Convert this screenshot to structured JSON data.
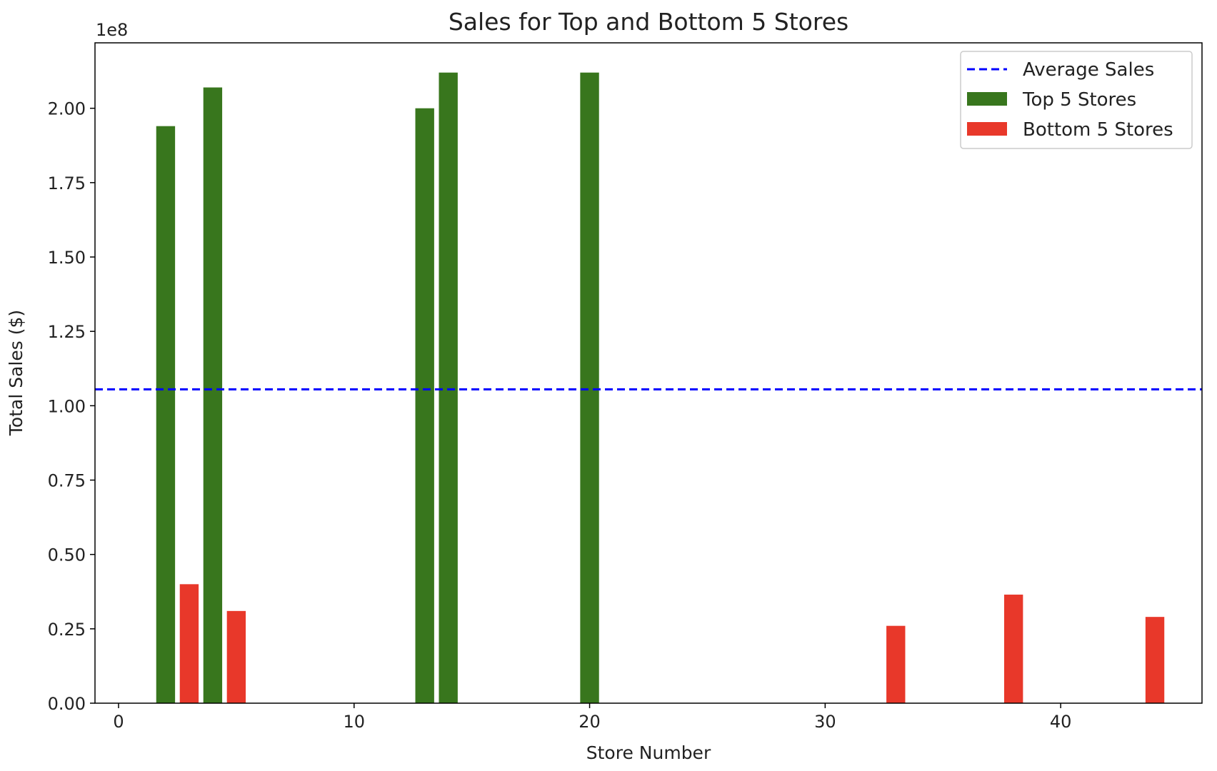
{
  "chart_data": {
    "type": "bar",
    "title": "Sales for Top and Bottom 5 Stores",
    "xlabel": "Store Number",
    "ylabel": "Total Sales ($)",
    "y_offset_label": "1e8",
    "xlim": [
      -1,
      46
    ],
    "ylim": [
      0,
      2.22
    ],
    "xticks": [
      0,
      10,
      20,
      30,
      40
    ],
    "yticks": [
      "0.00",
      "0.25",
      "0.50",
      "0.75",
      "1.00",
      "1.25",
      "1.50",
      "1.75",
      "2.00"
    ],
    "bar_width": 0.8,
    "average_sales": 1.055,
    "series": [
      {
        "name": "Top 5 Stores",
        "color": "#38761d",
        "x": [
          2,
          4,
          13,
          14,
          20
        ],
        "values": [
          1.94,
          2.07,
          2.0,
          2.12,
          2.12
        ]
      },
      {
        "name": "Bottom 5 Stores",
        "color": "#e8382a",
        "x": [
          3,
          5,
          33,
          38,
          44
        ],
        "values": [
          0.4,
          0.31,
          0.26,
          0.365,
          0.29
        ]
      }
    ],
    "average_line": {
      "name": "Average Sales",
      "color": "#0000ff",
      "style": "dashed"
    },
    "legend_position": "top-right",
    "grid": false
  }
}
